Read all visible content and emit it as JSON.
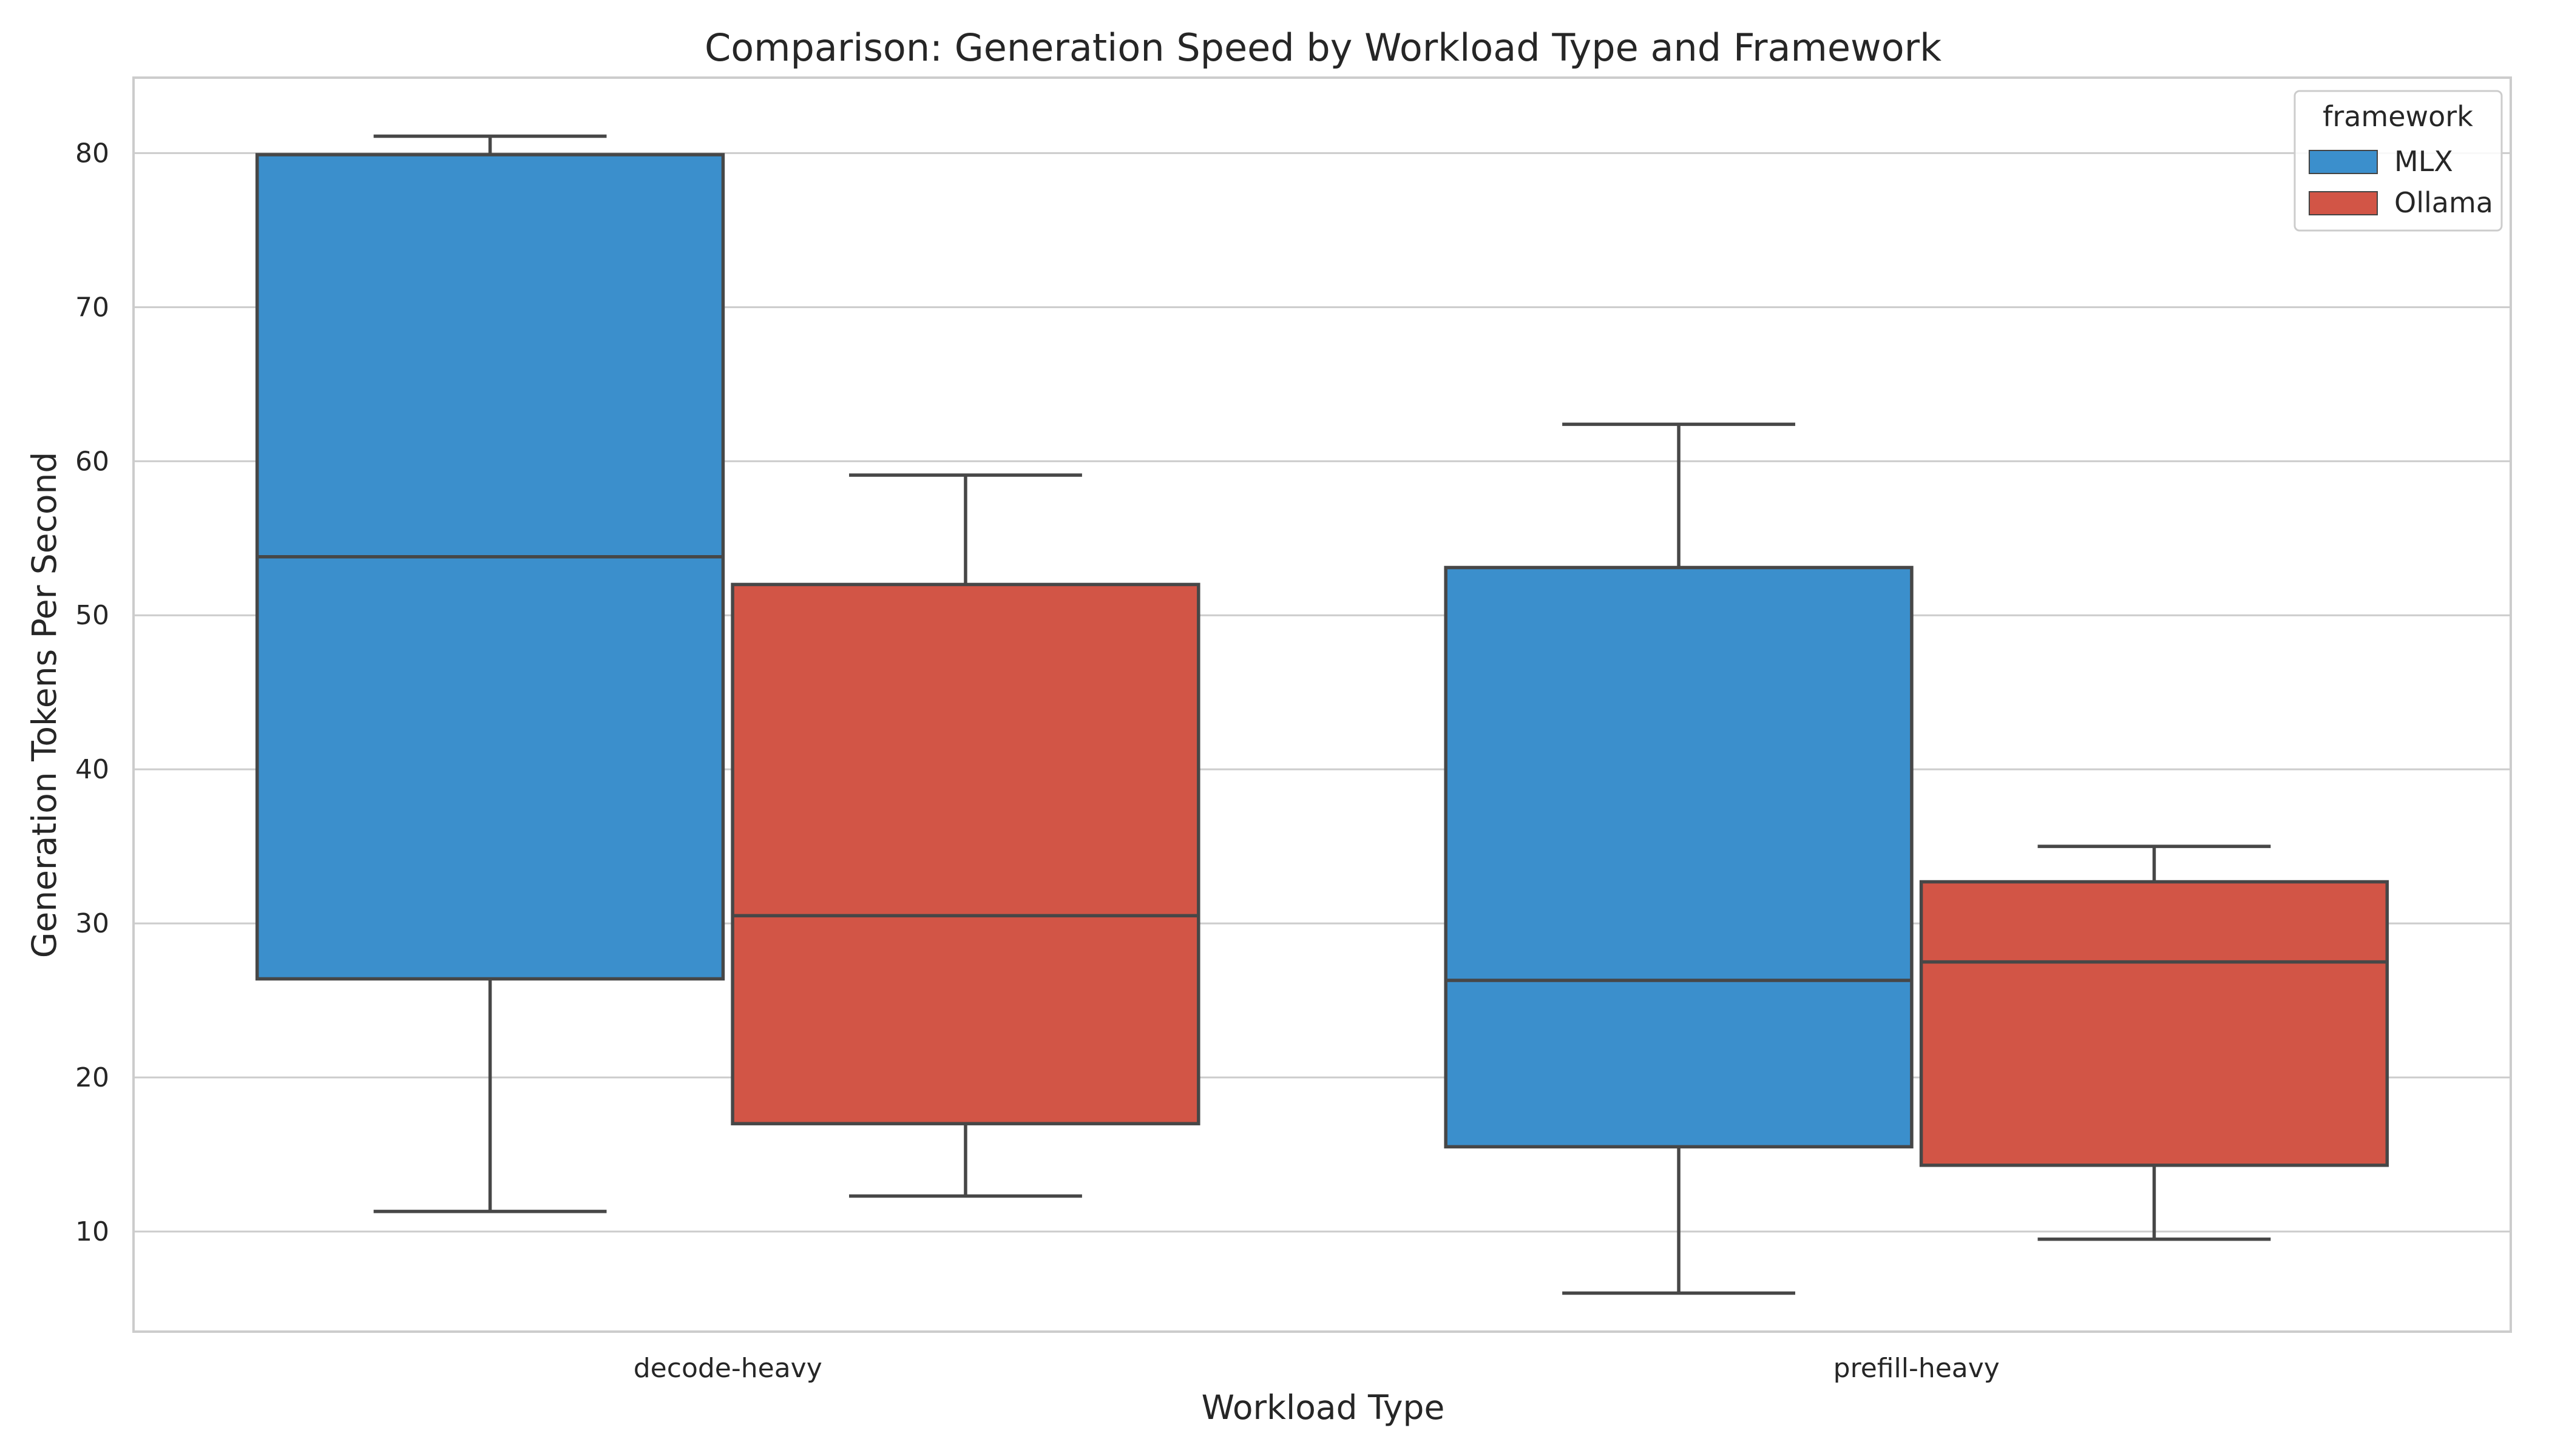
{
  "chart_data": {
    "type": "box",
    "title": "Comparison: Generation Speed by Workload Type and Framework",
    "xlabel": "Workload Type",
    "ylabel": "Generation Tokens Per Second",
    "categories": [
      "decode-heavy",
      "prefill-heavy"
    ],
    "ylim": [
      3.5,
      84.9
    ],
    "yticks": [
      10,
      20,
      30,
      40,
      50,
      60,
      70,
      80
    ],
    "grid": true,
    "legend": {
      "title": "framework",
      "placement": "top-right"
    },
    "series": [
      {
        "name": "MLX",
        "color": "#3b8fcc",
        "boxes": [
          {
            "category": "decode-heavy",
            "whisker_low": 11.3,
            "q1": 26.4,
            "median": 53.8,
            "q3": 79.9,
            "whisker_high": 81.1
          },
          {
            "category": "prefill-heavy",
            "whisker_low": 6.0,
            "q1": 15.5,
            "median": 26.3,
            "q3": 53.1,
            "whisker_high": 62.4
          }
        ]
      },
      {
        "name": "Ollama",
        "color": "#d25546",
        "boxes": [
          {
            "category": "decode-heavy",
            "whisker_low": 12.3,
            "q1": 17.0,
            "median": 30.5,
            "q3": 52.0,
            "whisker_high": 59.1
          },
          {
            "category": "prefill-heavy",
            "whisker_low": 9.5,
            "q1": 14.3,
            "median": 27.5,
            "q3": 32.7,
            "whisker_high": 35.0
          }
        ]
      }
    ]
  }
}
